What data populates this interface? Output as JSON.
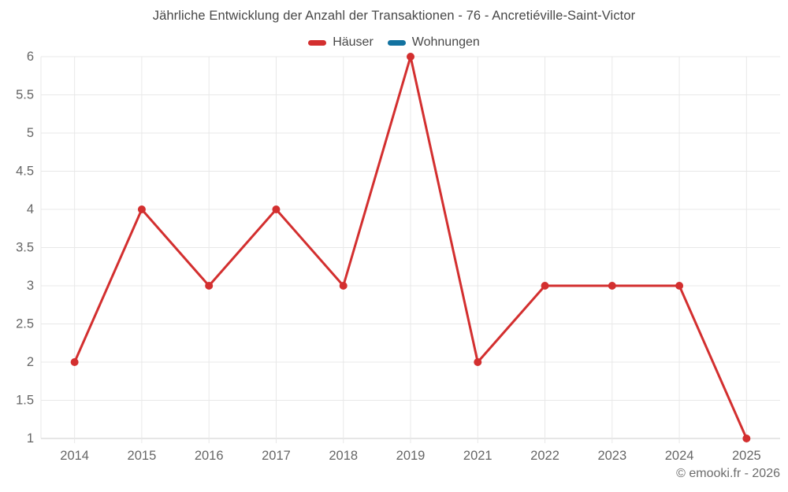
{
  "chart_data": {
    "type": "line",
    "title": "Jährliche Entwicklung der Anzahl der Transaktionen - 76 - Ancretiéville-Saint-Victor",
    "categories": [
      "2014",
      "2015",
      "2016",
      "2017",
      "2018",
      "2019",
      "2021",
      "2022",
      "2023",
      "2024",
      "2025"
    ],
    "series": [
      {
        "name": "Häuser",
        "color": "#d32f2f",
        "values": [
          2,
          4,
          3,
          4,
          3,
          6,
          2,
          3,
          3,
          3,
          1
        ]
      },
      {
        "name": "Wohnungen",
        "color": "#1272a0",
        "values": []
      }
    ],
    "ylim": [
      1,
      6
    ],
    "ytick_step": 0.5,
    "ytick_labels": [
      "6",
      "5.5",
      "5",
      "4.5",
      "4",
      "3.5",
      "3",
      "2.5",
      "2",
      "1.5",
      "1"
    ],
    "xlabel": "",
    "ylabel": "",
    "grid": true,
    "legend_position": "top",
    "grid_color": "#e8e8e8",
    "axis_color": "#cccccc",
    "tick_label_color": "#666666",
    "marker_radius": 5,
    "line_width": 3
  },
  "footer": {
    "copyright": "© emooki.fr - 2026"
  }
}
